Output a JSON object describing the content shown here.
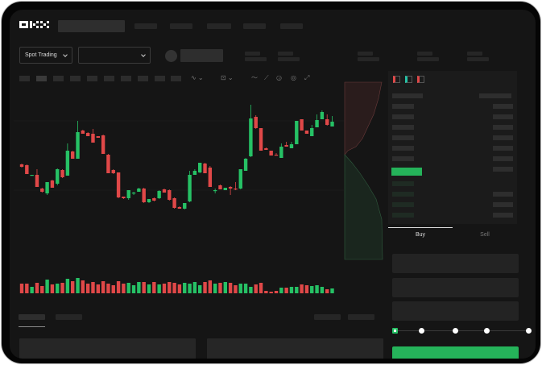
{
  "header": {
    "logo": "OKX"
  },
  "market_selector": {
    "label": "Spot Trading"
  },
  "trade_panel": {
    "tabs": [
      "Buy",
      "Sell"
    ],
    "active_tab": "Buy",
    "slider_level": 0
  },
  "colors": {
    "up": "#26c165",
    "down": "#e04848",
    "buy_button": "#25b35a",
    "background": "#151515"
  },
  "chart_data": {
    "type": "candlestick",
    "fields": [
      "open",
      "high",
      "low",
      "close"
    ],
    "candles": [
      [
        128,
        129,
        124,
        125
      ],
      [
        127,
        128,
        116,
        116
      ],
      [
        114,
        115,
        114,
        115
      ],
      [
        115,
        122,
        100,
        100
      ],
      [
        98,
        99,
        93,
        94
      ],
      [
        92,
        106,
        90,
        106
      ],
      [
        108,
        109,
        99,
        99
      ],
      [
        104,
        123,
        102,
        122
      ],
      [
        121,
        122,
        111,
        112
      ],
      [
        114,
        154,
        114,
        145
      ],
      [
        144,
        145,
        135,
        135
      ],
      [
        135,
        182,
        135,
        168
      ],
      [
        170,
        171,
        166,
        166
      ],
      [
        167,
        168,
        163,
        163
      ],
      [
        166,
        172,
        155,
        155
      ],
      [
        163,
        163,
        161,
        161
      ],
      [
        164,
        165,
        141,
        141
      ],
      [
        140,
        141,
        117,
        117
      ],
      [
        121,
        122,
        116,
        117
      ],
      [
        118,
        118,
        86,
        87
      ],
      [
        88,
        88,
        85,
        86
      ],
      [
        86,
        96,
        84,
        96
      ],
      [
        92,
        94,
        90,
        93
      ],
      [
        94,
        99,
        94,
        98
      ],
      [
        98,
        99,
        80,
        81
      ],
      [
        81,
        85,
        80,
        85
      ],
      [
        86,
        87,
        82,
        83
      ],
      [
        86,
        96,
        85,
        95
      ],
      [
        97,
        98,
        93,
        93
      ],
      [
        96,
        97,
        83,
        84
      ],
      [
        86,
        87,
        73,
        74
      ],
      [
        75,
        76,
        73,
        73
      ],
      [
        73,
        80,
        72,
        80
      ],
      [
        82,
        120,
        81,
        115
      ],
      [
        115,
        122,
        115,
        120
      ],
      [
        118,
        130,
        117,
        130
      ],
      [
        129,
        130,
        117,
        117
      ],
      [
        124,
        126,
        100,
        100
      ],
      [
        95,
        98,
        92,
        96
      ],
      [
        102,
        103,
        97,
        97
      ],
      [
        96,
        99,
        96,
        99
      ],
      [
        100,
        101,
        90,
        98
      ],
      [
        98,
        106,
        96,
        97
      ],
      [
        98,
        122,
        97,
        122
      ],
      [
        120,
        136,
        120,
        135
      ],
      [
        138,
        202,
        137,
        185
      ],
      [
        187,
        189,
        172,
        173
      ],
      [
        173,
        173,
        145,
        145
      ],
      [
        148,
        149,
        146,
        146
      ],
      [
        145,
        145,
        139,
        139
      ],
      [
        140,
        142,
        139,
        139
      ],
      [
        136,
        154,
        136,
        150
      ],
      [
        152,
        156,
        150,
        150
      ],
      [
        148,
        156,
        148,
        153
      ],
      [
        153,
        182,
        153,
        182
      ],
      [
        184,
        184,
        170,
        170
      ],
      [
        170,
        170,
        166,
        166
      ],
      [
        163,
        177,
        163,
        173
      ],
      [
        174,
        190,
        174,
        183
      ],
      [
        184,
        195,
        184,
        193
      ],
      [
        184,
        190,
        176,
        177
      ],
      [
        175,
        188,
        175,
        181
      ]
    ],
    "volume": [
      12,
      12,
      8,
      13,
      9,
      17,
      11,
      12,
      13,
      18,
      15,
      19,
      16,
      12,
      14,
      11,
      15,
      12,
      10,
      15,
      12,
      13,
      10,
      14,
      14,
      11,
      14,
      11,
      12,
      14,
      13,
      11,
      13,
      12,
      14,
      10,
      14,
      16,
      12,
      13,
      14,
      13,
      10,
      12,
      12,
      8,
      11,
      13,
      3,
      2,
      3,
      7,
      7,
      8,
      8,
      11,
      10,
      9,
      10,
      8,
      5,
      6
    ]
  }
}
